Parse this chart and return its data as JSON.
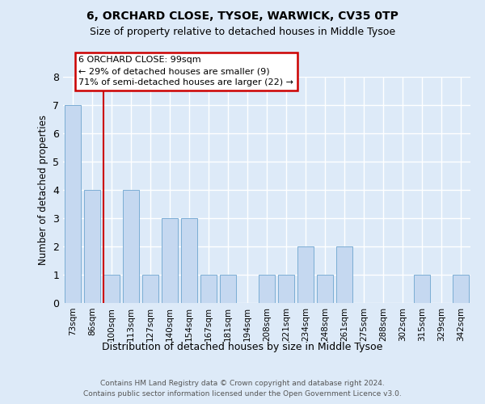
{
  "title1": "6, ORCHARD CLOSE, TYSOE, WARWICK, CV35 0TP",
  "title2": "Size of property relative to detached houses in Middle Tysoe",
  "xlabel": "Distribution of detached houses by size in Middle Tysoe",
  "ylabel": "Number of detached properties",
  "categories": [
    "73sqm",
    "86sqm",
    "100sqm",
    "113sqm",
    "127sqm",
    "140sqm",
    "154sqm",
    "167sqm",
    "181sqm",
    "194sqm",
    "208sqm",
    "221sqm",
    "234sqm",
    "248sqm",
    "261sqm",
    "275sqm",
    "288sqm",
    "302sqm",
    "315sqm",
    "329sqm",
    "342sqm"
  ],
  "values": [
    7,
    4,
    1,
    4,
    1,
    3,
    3,
    1,
    1,
    0,
    1,
    1,
    2,
    1,
    2,
    0,
    0,
    0,
    1,
    0,
    1
  ],
  "bar_color": "#c5d8f0",
  "bar_edgecolor": "#7badd4",
  "highlight_index": 2,
  "highlight_color": "#cc0000",
  "ylim": [
    0,
    8
  ],
  "yticks": [
    0,
    1,
    2,
    3,
    4,
    5,
    6,
    7,
    8
  ],
  "annotation_line1": "6 ORCHARD CLOSE: 99sqm",
  "annotation_line2": "← 29% of detached houses are smaller (9)",
  "annotation_line3": "71% of semi-detached houses are larger (22) →",
  "annotation_box_facecolor": "#ffffff",
  "annotation_box_edgecolor": "#cc0000",
  "footer1": "Contains HM Land Registry data © Crown copyright and database right 2024.",
  "footer2": "Contains public sector information licensed under the Open Government Licence v3.0.",
  "background_color": "#ddeaf8",
  "grid_color": "#ffffff",
  "bar_width": 0.8
}
